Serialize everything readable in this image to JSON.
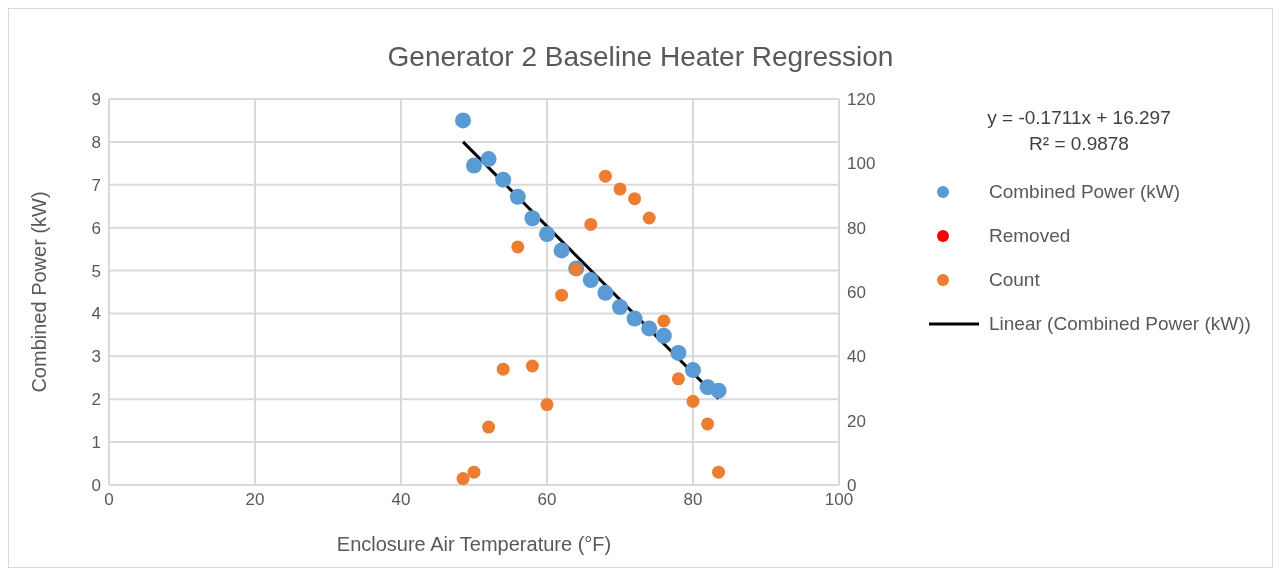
{
  "chart_data": {
    "type": "scatter",
    "title": "Generator 2 Baseline Heater Regression",
    "xlabel": "Enclosure Air Temperature (°F)",
    "ylabel": "Combined Power (kW)",
    "xlim": [
      0,
      100
    ],
    "xticks": [
      0,
      20,
      40,
      60,
      80,
      100
    ],
    "ylim": [
      0,
      9
    ],
    "yticks": [
      0,
      1,
      2,
      3,
      4,
      5,
      6,
      7,
      8,
      9
    ],
    "y2lim": [
      0,
      120
    ],
    "y2ticks": [
      0,
      20,
      40,
      60,
      80,
      100,
      120
    ],
    "grid": true,
    "legend": "right",
    "marker": "circle",
    "annotations": [
      "y = -0.1711x + 16.297",
      "R² = 0.9878"
    ],
    "series": [
      {
        "name": "Combined Power (kW)",
        "color": "#5b9bd5",
        "x": [
          48.5,
          50,
          52,
          54,
          56,
          58,
          60,
          62,
          64,
          66,
          68,
          70,
          72,
          74,
          76,
          78,
          80,
          82,
          83.5
        ],
        "values": [
          8.5,
          7.45,
          7.6,
          7.12,
          6.72,
          6.22,
          5.85,
          5.47,
          5.05,
          4.78,
          4.48,
          4.15,
          3.88,
          3.65,
          3.48,
          3.08,
          2.68,
          2.28,
          2.2
        ]
      },
      {
        "name": "Removed",
        "color": "#ff0000"
      },
      {
        "name": "Count",
        "color": "#ed7d31",
        "axis": "y2",
        "x": [
          48.5,
          50,
          52,
          54,
          56,
          58,
          60,
          62,
          64,
          66,
          68,
          70,
          72,
          74,
          76,
          78,
          80,
          82,
          83.5
        ],
        "values": [
          2,
          4,
          18,
          36,
          74,
          37,
          25,
          59,
          67,
          81,
          96,
          92,
          89,
          83,
          51,
          33,
          26,
          19,
          4
        ]
      },
      {
        "name": "Linear (Combined Power (kW))",
        "type": "line",
        "marker": "none",
        "color": "#000000",
        "x": [
          48.5,
          83.5
        ],
        "values": [
          8.0,
          2.01
        ]
      }
    ]
  }
}
